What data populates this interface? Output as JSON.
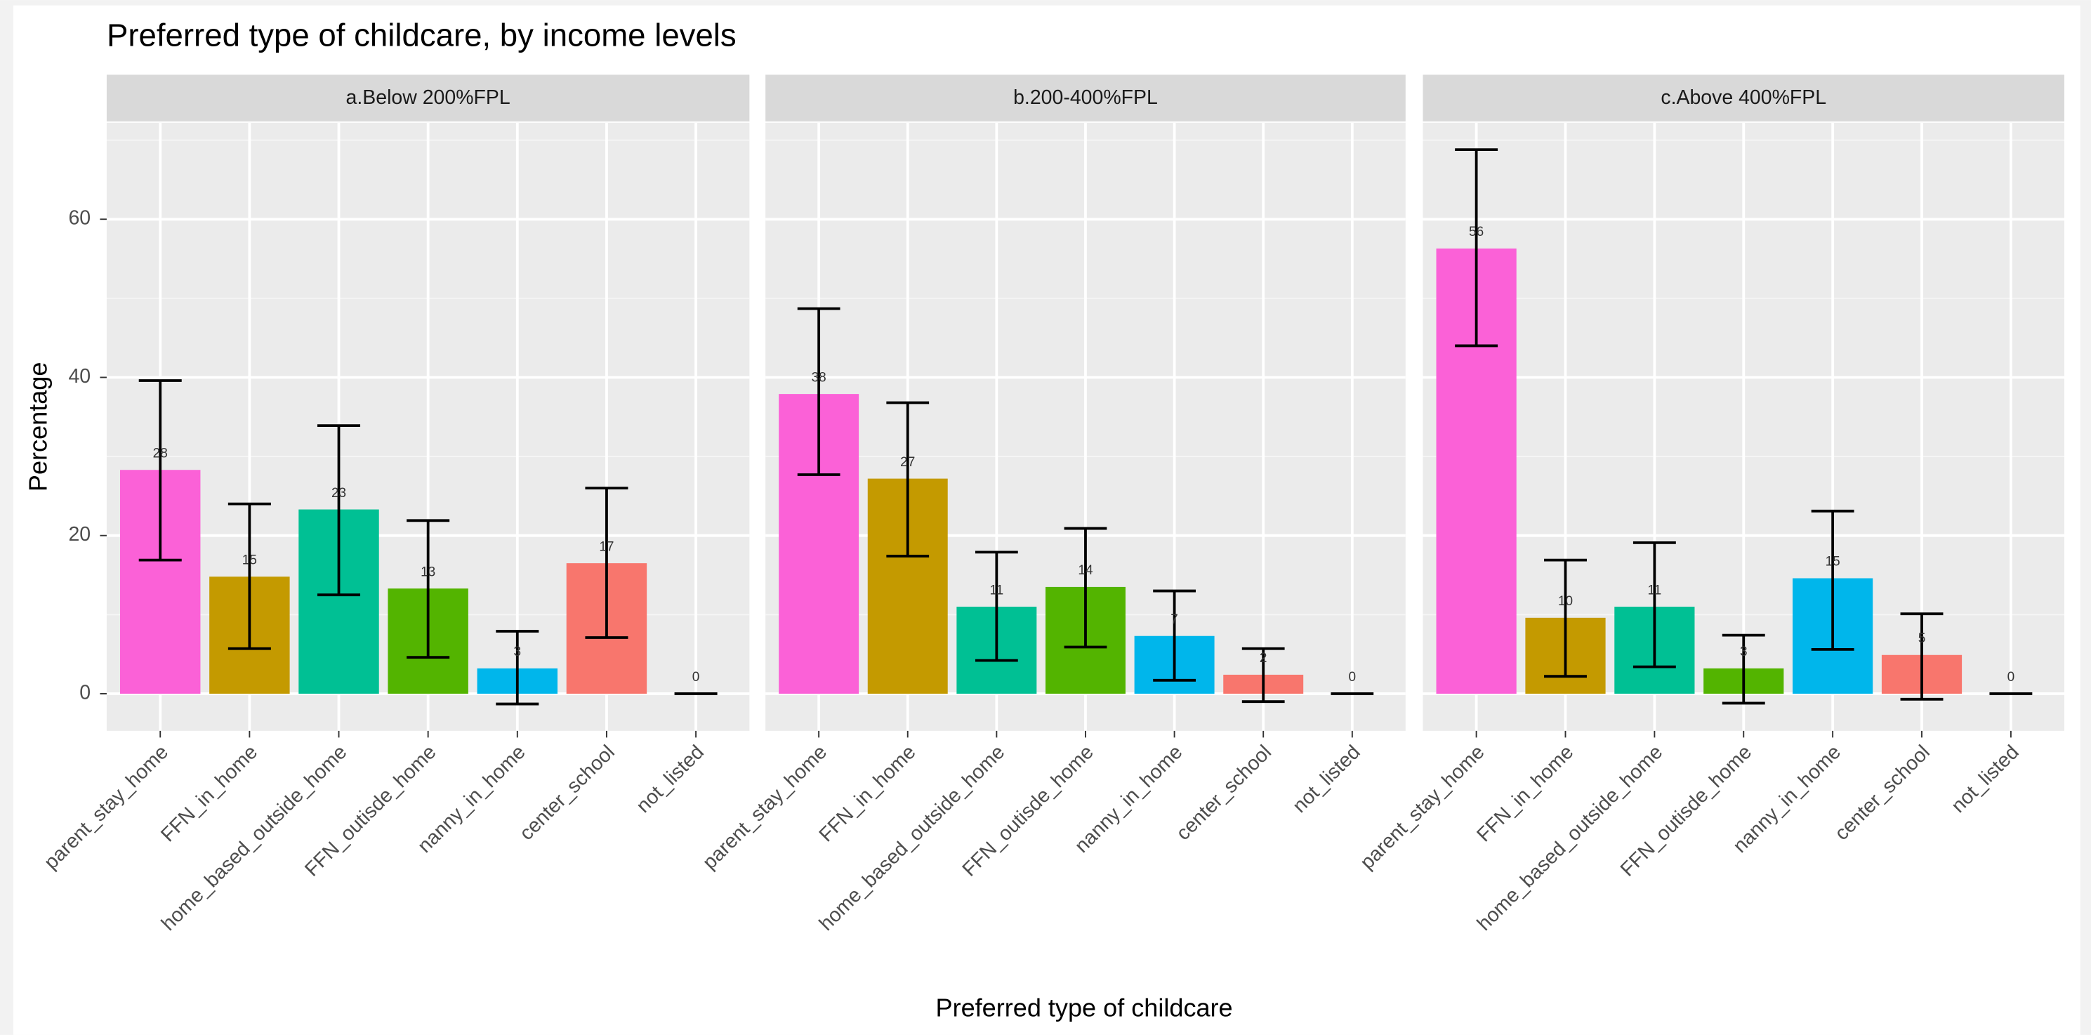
{
  "chart_data": {
    "type": "bar",
    "title": "Preferred type of childcare, by income levels",
    "x_label": "Preferred type of childcare",
    "y_label": "Percentage",
    "categories": [
      "parent_stay_home",
      "FFN_in_home",
      "home_based_outside_home",
      "FFN_outisde_home",
      "nanny_in_home",
      "center_school",
      "not_listed"
    ],
    "colors": [
      "#FB61D7",
      "#C49A00",
      "#00C094",
      "#53B400",
      "#00B6EB",
      "#F8766D",
      "#A58AFF"
    ],
    "ylim": [
      -4.7,
      72.2
    ],
    "yticks": [
      0,
      20,
      40,
      60
    ],
    "grid": true,
    "minor_grid": true,
    "panels": [
      {
        "title": "a.Below 200%FPL",
        "values": [
          28.3,
          14.8,
          23.3,
          13.3,
          3.2,
          16.5,
          0
        ],
        "value_labels": [
          "28",
          "15",
          "23",
          "13",
          "3",
          "17",
          "0"
        ],
        "lower": [
          16.9,
          5.7,
          12.5,
          4.6,
          -1.3,
          7.1,
          0
        ],
        "upper": [
          39.6,
          24.0,
          33.9,
          21.9,
          7.9,
          26.0,
          0
        ]
      },
      {
        "title": "b.200-400%FPL",
        "values": [
          37.9,
          27.2,
          11.0,
          13.5,
          7.3,
          2.4,
          0
        ],
        "value_labels": [
          "38",
          "27",
          "11",
          "14",
          "7",
          "2",
          "0"
        ],
        "lower": [
          27.7,
          17.4,
          4.2,
          5.9,
          1.7,
          -1.0,
          0
        ],
        "upper": [
          48.7,
          36.8,
          17.9,
          20.9,
          13.0,
          5.7,
          0
        ]
      },
      {
        "title": "c.Above 400%FPL",
        "values": [
          56.3,
          9.6,
          11.0,
          3.2,
          14.6,
          4.9,
          0
        ],
        "value_labels": [
          "56",
          "10",
          "11",
          "3",
          "15",
          "5",
          "0"
        ],
        "lower": [
          44.0,
          2.2,
          3.4,
          -1.2,
          5.6,
          -0.7,
          0
        ],
        "upper": [
          68.8,
          16.9,
          19.1,
          7.4,
          23.1,
          10.1,
          0
        ]
      }
    ]
  }
}
